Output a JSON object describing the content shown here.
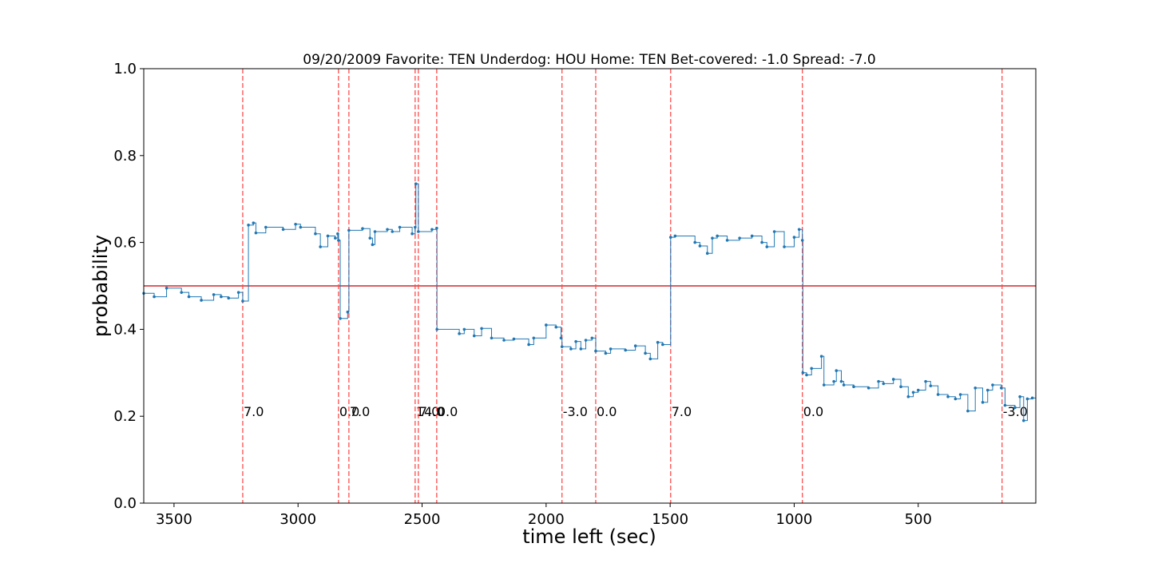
{
  "chart_data": {
    "type": "step",
    "title": "09/20/2009 Favorite: TEN Underdog: HOU Home: TEN Bet-covered: -1.0 Spread: -7.0",
    "xlabel": "time left (sec)",
    "ylabel": "probability",
    "xlim": [
      3622,
      26
    ],
    "ylim": [
      0,
      1
    ],
    "xticks": [
      3500,
      3000,
      2500,
      2000,
      1500,
      1000,
      500
    ],
    "yticks": [
      {
        "value": 0,
        "label": "0.0"
      },
      0.2,
      0.4,
      0.6,
      0.8,
      {
        "value": 1,
        "label": "1.0"
      }
    ],
    "hline": 0.5,
    "hline_color": "#d62728",
    "vline_color": "#ff4c4c",
    "vlines": [
      {
        "x": 3223,
        "label": "7.0"
      },
      {
        "x": 2837,
        "label": "0.0"
      },
      {
        "x": 2795,
        "label": "7.0"
      },
      {
        "x": 2528,
        "label": "14.0"
      },
      {
        "x": 2515,
        "label": "7.0"
      },
      {
        "x": 2441,
        "label": "0.0"
      },
      {
        "x": 1936,
        "label": "-3.0"
      },
      {
        "x": 1800,
        "label": "0.0"
      },
      {
        "x": 1498,
        "label": "7.0"
      },
      {
        "x": 967,
        "label": "0.0"
      },
      {
        "x": 162,
        "label": "-3.0"
      }
    ],
    "series": [
      {
        "color": "#1f77b4",
        "x": [
          3622,
          3580,
          3530,
          3470,
          3440,
          3390,
          3340,
          3310,
          3280,
          3240,
          3223,
          3200,
          3180,
          3170,
          3130,
          3060,
          3010,
          2990,
          2930,
          2910,
          2880,
          2850,
          2840,
          2837,
          2830,
          2800,
          2795,
          2740,
          2710,
          2700,
          2690,
          2640,
          2620,
          2590,
          2540,
          2528,
          2525,
          2515,
          2460,
          2441,
          2440,
          2350,
          2330,
          2290,
          2260,
          2220,
          2170,
          2130,
          2070,
          2050,
          2000,
          1960,
          1940,
          1936,
          1900,
          1880,
          1860,
          1840,
          1815,
          1800,
          1760,
          1740,
          1680,
          1640,
          1600,
          1580,
          1550,
          1530,
          1498,
          1480,
          1400,
          1380,
          1350,
          1330,
          1310,
          1270,
          1220,
          1170,
          1130,
          1110,
          1080,
          1040,
          1000,
          980,
          967,
          965,
          950,
          930,
          890,
          880,
          840,
          830,
          810,
          800,
          760,
          700,
          660,
          640,
          600,
          570,
          540,
          520,
          500,
          470,
          450,
          420,
          380,
          350,
          330,
          300,
          270,
          240,
          220,
          200,
          165,
          150,
          110,
          90,
          75,
          60,
          40
        ],
        "values": [
          0.483,
          0.475,
          0.495,
          0.485,
          0.475,
          0.467,
          0.48,
          0.475,
          0.472,
          0.485,
          0.465,
          0.64,
          0.645,
          0.622,
          0.635,
          0.63,
          0.642,
          0.635,
          0.62,
          0.59,
          0.615,
          0.61,
          0.62,
          0.605,
          0.425,
          0.44,
          0.628,
          0.632,
          0.61,
          0.595,
          0.625,
          0.63,
          0.625,
          0.635,
          0.62,
          0.635,
          0.735,
          0.625,
          0.63,
          0.633,
          0.4,
          0.39,
          0.4,
          0.385,
          0.402,
          0.38,
          0.375,
          0.378,
          0.365,
          0.38,
          0.41,
          0.405,
          0.38,
          0.36,
          0.355,
          0.372,
          0.355,
          0.375,
          0.38,
          0.35,
          0.345,
          0.355,
          0.352,
          0.362,
          0.345,
          0.332,
          0.37,
          0.365,
          0.612,
          0.615,
          0.6,
          0.592,
          0.575,
          0.61,
          0.615,
          0.605,
          0.61,
          0.615,
          0.6,
          0.59,
          0.625,
          0.59,
          0.612,
          0.63,
          0.605,
          0.3,
          0.295,
          0.31,
          0.338,
          0.272,
          0.28,
          0.305,
          0.28,
          0.272,
          0.268,
          0.265,
          0.28,
          0.275,
          0.285,
          0.268,
          0.245,
          0.255,
          0.26,
          0.28,
          0.27,
          0.25,
          0.245,
          0.24,
          0.25,
          0.212,
          0.265,
          0.232,
          0.26,
          0.272,
          0.265,
          0.225,
          0.22,
          0.245,
          0.19,
          0.24,
          0.242
        ]
      }
    ]
  }
}
